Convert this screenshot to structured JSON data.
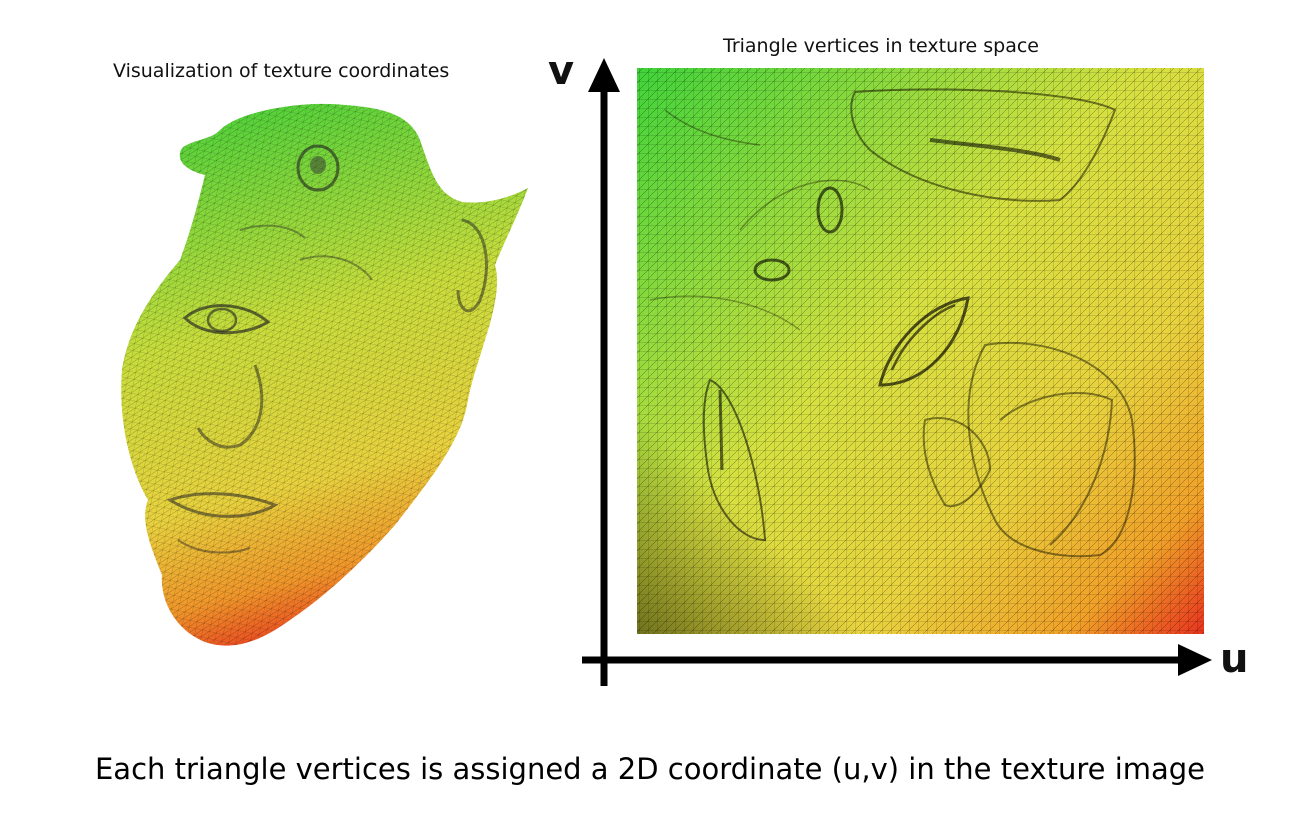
{
  "left_panel": {
    "title": "Visualization of texture coordinates"
  },
  "right_panel": {
    "title": "Triangle vertices in texture space",
    "axis_v_label": "v",
    "axis_u_label": "u"
  },
  "caption": "Each triangle vertices is assigned a 2D coordinate (u,v) in the texture image",
  "colors": {
    "green": "#3fd33a",
    "yellow": "#e6e240",
    "orange": "#f0a028",
    "red": "#e8321e",
    "axis": "#000000"
  }
}
